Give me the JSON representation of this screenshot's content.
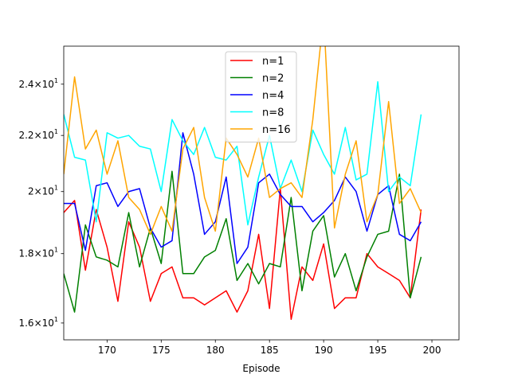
{
  "chart_data": {
    "type": "line",
    "xlabel": "Episode",
    "ylabel": "",
    "xlim": [
      166,
      202.5
    ],
    "ylim": [
      15.55,
      25.6
    ],
    "yscale": "log",
    "xticks": [
      170,
      175,
      180,
      185,
      190,
      195,
      200
    ],
    "xtick_labels": [
      "170",
      "175",
      "180",
      "185",
      "190",
      "195",
      "200"
    ],
    "yticks": [
      16,
      18,
      20,
      22,
      24
    ],
    "ytick_labels": [
      {
        "base": "1.6",
        "exp": "1"
      },
      {
        "base": "1.8",
        "exp": "1"
      },
      {
        "base": "2",
        "exp": "1"
      },
      {
        "base": "2.2",
        "exp": "1"
      },
      {
        "base": "2.4",
        "exp": "1"
      }
    ],
    "legend_position": "top-center",
    "x": [
      166,
      167,
      168,
      169,
      170,
      171,
      172,
      173,
      174,
      175,
      176,
      177,
      178,
      179,
      180,
      181,
      182,
      183,
      184,
      185,
      186,
      187,
      188,
      189,
      190,
      191,
      192,
      193,
      194,
      195,
      196,
      197,
      198,
      199
    ],
    "series": [
      {
        "name": "n=1",
        "color": "#ff0000",
        "values": [
          19.3,
          19.7,
          17.5,
          19.4,
          18.2,
          16.6,
          19.0,
          18.2,
          16.6,
          17.4,
          17.6,
          16.7,
          16.7,
          16.5,
          16.7,
          16.9,
          16.3,
          16.9,
          18.6,
          16.4,
          20.1,
          16.1,
          17.6,
          17.2,
          18.3,
          16.4,
          16.7,
          16.7,
          18.0,
          17.6,
          17.4,
          17.2,
          16.7,
          19.4
        ]
      },
      {
        "name": "n=2",
        "color": "#008000",
        "values": [
          17.4,
          16.3,
          18.9,
          17.9,
          17.8,
          17.6,
          19.3,
          17.6,
          18.8,
          17.7,
          20.7,
          17.4,
          17.4,
          17.9,
          18.1,
          19.1,
          17.2,
          17.7,
          17.1,
          17.7,
          17.6,
          19.8,
          16.9,
          18.7,
          19.2,
          17.3,
          18.0,
          16.9,
          17.9,
          18.6,
          18.7,
          20.6,
          16.7,
          17.9
        ]
      },
      {
        "name": "n=4",
        "color": "#0000ff",
        "values": [
          19.6,
          19.6,
          18.1,
          20.2,
          20.3,
          19.5,
          20.0,
          20.1,
          18.8,
          18.2,
          18.4,
          22.1,
          20.6,
          18.6,
          19.0,
          20.5,
          17.7,
          18.2,
          20.3,
          20.6,
          19.9,
          19.5,
          19.5,
          19.0,
          19.3,
          19.7,
          20.5,
          20.0,
          18.7,
          19.9,
          20.2,
          18.6,
          18.4,
          19.0
        ]
      },
      {
        "name": "n=8",
        "color": "#00ffff",
        "values": [
          22.8,
          21.2,
          21.1,
          19.0,
          22.1,
          21.9,
          22.0,
          21.6,
          21.5,
          20.0,
          22.6,
          21.8,
          21.3,
          22.3,
          21.2,
          21.1,
          21.6,
          18.9,
          20.5,
          22.0,
          20.1,
          21.1,
          20.0,
          22.2,
          21.3,
          20.6,
          22.3,
          20.4,
          20.6,
          24.1,
          20.0,
          20.5,
          20.2,
          22.8
        ]
      },
      {
        "name": "n=16",
        "color": "#ffa500",
        "values": [
          20.6,
          24.3,
          21.5,
          22.2,
          20.6,
          21.8,
          19.8,
          19.4,
          18.6,
          19.5,
          18.7,
          21.5,
          22.3,
          19.8,
          18.7,
          21.9,
          21.3,
          20.5,
          21.9,
          19.8,
          20.1,
          20.3,
          19.8,
          22.6,
          27.0,
          18.8,
          20.6,
          21.8,
          19.0,
          19.9,
          23.3,
          19.6,
          20.1,
          19.3
        ]
      }
    ]
  }
}
